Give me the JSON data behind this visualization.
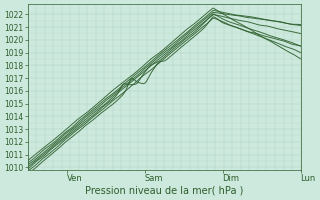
{
  "title": "Pression niveau de la mer( hPa )",
  "bg_color": "#cde8dc",
  "grid_minor_color": "#b0d4c4",
  "grid_major_color": "#5a8a6a",
  "line_color": "#2d5f2d",
  "ylim": [
    1009.8,
    1022.8
  ],
  "yticks": [
    1010,
    1011,
    1012,
    1013,
    1014,
    1015,
    1016,
    1017,
    1018,
    1019,
    1020,
    1021,
    1022
  ],
  "xlabel": "Pression niveau de la mer( hPa )",
  "xlabel_fontsize": 7,
  "tick_fontsize": 5.5,
  "xtick_labels": [
    "Ven",
    "Sam",
    "Dim",
    "Lun"
  ],
  "xtick_positions": [
    0.143,
    0.429,
    0.714,
    1.0
  ],
  "vline_positions": [
    0.143,
    0.429,
    0.714
  ],
  "figsize": [
    3.2,
    2.0
  ],
  "dpi": 100
}
